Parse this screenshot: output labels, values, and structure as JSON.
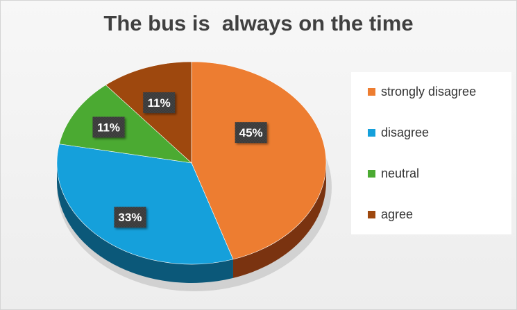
{
  "chart_data": {
    "type": "pie",
    "title": "The bus is  always on the time",
    "slices": [
      {
        "label": "strongly disagree",
        "value": 45,
        "data_label": "45%",
        "color": "#ED7D31",
        "side_color": "#7A3310"
      },
      {
        "label": "disagree",
        "value": 33,
        "data_label": "33%",
        "color": "#15A0DB",
        "side_color": "#0B5879"
      },
      {
        "label": "neutral",
        "value": 11,
        "data_label": "11%",
        "color": "#4BAA32",
        "side_color": "#2B6320"
      },
      {
        "label": "agree",
        "value": 11,
        "data_label": "11%",
        "color": "#9E480E",
        "side_color": "#5C2706"
      }
    ],
    "legend_position": "right",
    "style": "3d-pie"
  }
}
